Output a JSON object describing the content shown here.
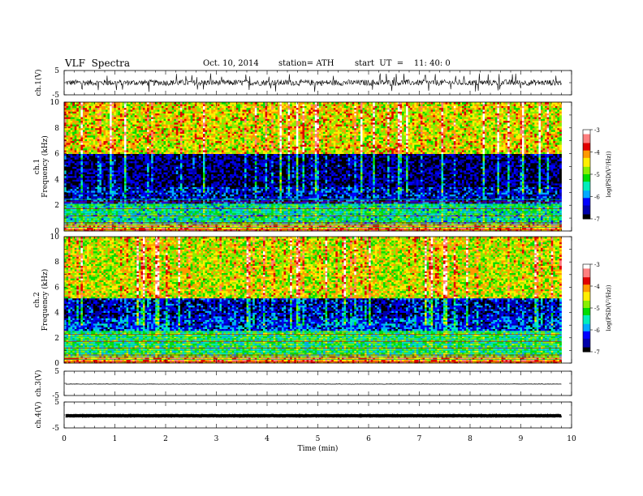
{
  "header": {
    "title": "VLF  Spectra",
    "date": "Oct. 10, 2014",
    "station": "station= ATH",
    "start": "start  UT  =    11: 40: 0"
  },
  "colorbar": {
    "label": "log(PSD(V²/Hz))",
    "ticks": [
      "-3",
      "-4",
      "-5",
      "-6",
      "-7"
    ],
    "colors": [
      "#ffffff",
      "#ff7f7f",
      "#e00000",
      "#ff9900",
      "#ffee00",
      "#88ee00",
      "#00dd00",
      "#00eebb",
      "#00aaff",
      "#0000ff",
      "#0000aa",
      "#000000"
    ]
  },
  "chart_data": [
    {
      "type": "line",
      "panel": "ch1-waveform",
      "ylabel": "ch.1(V)",
      "ylim": [
        -5,
        5
      ],
      "yticks": [
        "5",
        "-5"
      ],
      "description_series": [
        {
          "name": "ch.1",
          "amplitude_typical_V": 1.2,
          "spikes_to_V": 3.8
        }
      ]
    },
    {
      "type": "heatmap",
      "panel": "ch1-spectrogram",
      "ylabel": "ch.1\nFrequency  (kHz)",
      "ylim": [
        0,
        10
      ],
      "yticks": [
        "0",
        "2",
        "4",
        "6",
        "8",
        "10"
      ],
      "zlim": [
        -7,
        -3
      ],
      "bands_kHz": [
        {
          "range": [
            0,
            0.6
          ],
          "level": -3.5
        },
        {
          "range": [
            0.6,
            2.2
          ],
          "level": -5.5
        },
        {
          "range": [
            2.2,
            3.5
          ],
          "level": -6.5
        },
        {
          "range": [
            3.5,
            6.0
          ],
          "level": -6.8
        },
        {
          "range": [
            6.0,
            10
          ],
          "level": -4.5
        }
      ]
    },
    {
      "type": "heatmap",
      "panel": "ch2-spectrogram",
      "ylabel": "ch.2\nFrequency  (kHz)",
      "ylim": [
        0,
        10
      ],
      "yticks": [
        "0",
        "2",
        "4",
        "6",
        "8",
        "10"
      ],
      "zlim": [
        -7,
        -3
      ],
      "bands_kHz": [
        {
          "range": [
            0,
            0.6
          ],
          "level": -3.8
        },
        {
          "range": [
            0.6,
            2.6
          ],
          "level": -5.3
        },
        {
          "range": [
            2.6,
            3.6
          ],
          "level": -6.3
        },
        {
          "range": [
            3.6,
            5.2
          ],
          "level": -6.6
        },
        {
          "range": [
            5.2,
            10
          ],
          "level": -4.6
        }
      ]
    },
    {
      "type": "line",
      "panel": "ch3-waveform",
      "ylabel": "ch.3(V)",
      "ylim": [
        -5,
        5
      ],
      "yticks": [
        "5",
        "-5"
      ],
      "description_series": [
        {
          "name": "ch.3",
          "level_V": -0.3
        }
      ]
    },
    {
      "type": "line",
      "panel": "ch4-waveform",
      "ylabel": "ch.4(V)",
      "ylim": [
        -5,
        5
      ],
      "yticks": [
        "5",
        "-5"
      ],
      "description_series": [
        {
          "name": "ch.4",
          "level_V": -0.3
        }
      ]
    }
  ],
  "x_axis": {
    "label": "Time  (min)",
    "range": [
      0,
      10
    ],
    "ticks": [
      "0",
      "1",
      "2",
      "3",
      "4",
      "5",
      "6",
      "7",
      "8",
      "9",
      "10"
    ],
    "data_end_min": 9.8
  }
}
